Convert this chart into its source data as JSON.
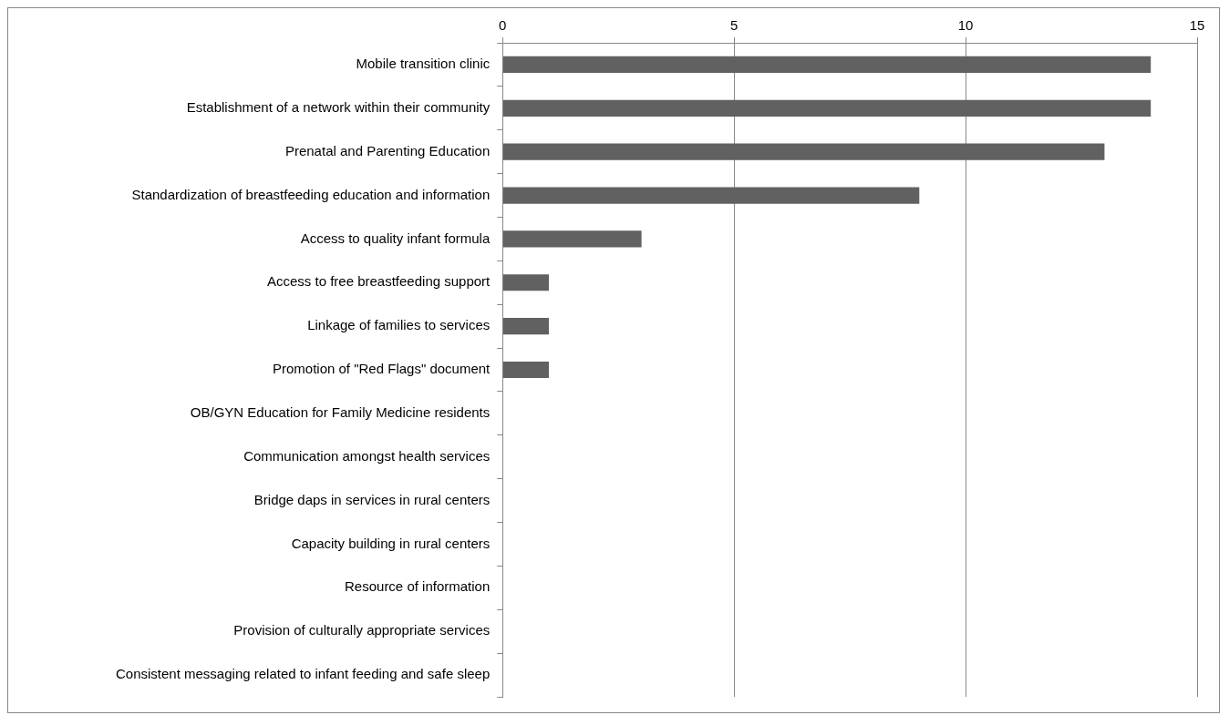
{
  "chart_data": {
    "type": "bar",
    "orientation": "horizontal",
    "categories": [
      "Mobile transition clinic",
      "Establishment of a network within their community",
      "Prenatal and Parenting Education",
      "Standardization of breastfeeding education and information",
      "Access to quality infant formula",
      "Access to free breastfeeding support",
      "Linkage of families to services",
      "Promotion of \"Red Flags\" document",
      "OB/GYN Education for Family Medicine residents",
      "Communication amongst health services",
      "Bridge daps in services in rural centers",
      "Capacity building in rural centers",
      "Resource of information",
      "Provision of culturally appropriate services",
      "Consistent messaging related to infant feeding and safe sleep"
    ],
    "values": [
      14,
      14,
      13,
      9,
      3,
      1,
      1,
      1,
      0,
      0,
      0,
      0,
      0,
      0,
      0
    ],
    "color": "#616161",
    "xlim": [
      0,
      15
    ],
    "xticks": [
      0,
      5,
      10,
      15
    ],
    "grid": "x",
    "legend": false
  }
}
